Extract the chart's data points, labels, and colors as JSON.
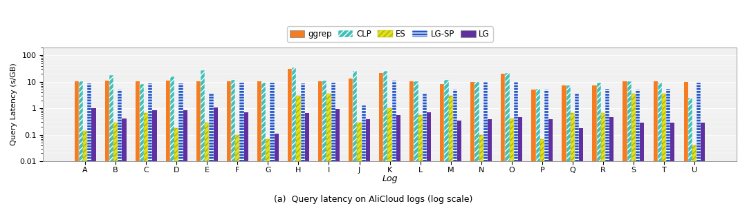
{
  "categories": [
    "A",
    "B",
    "C",
    "D",
    "E",
    "F",
    "G",
    "H",
    "I",
    "J",
    "K",
    "L",
    "M",
    "N",
    "O",
    "P",
    "Q",
    "R",
    "S",
    "T",
    "U"
  ],
  "ggrep": [
    10.5,
    11.0,
    10.2,
    10.8,
    10.5,
    10.5,
    10.5,
    30.0,
    10.5,
    13.0,
    22.0,
    10.5,
    8.0,
    10.0,
    20.0,
    5.0,
    7.5,
    7.5,
    10.5,
    10.5,
    10.0
  ],
  "clp": [
    10.5,
    17.5,
    8.0,
    15.5,
    27.0,
    11.5,
    9.5,
    35.0,
    11.0,
    25.0,
    25.0,
    10.5,
    11.5,
    10.0,
    22.0,
    5.5,
    7.5,
    9.5,
    10.5,
    9.5,
    2.5
  ],
  "es": [
    0.14,
    0.28,
    0.65,
    0.18,
    0.28,
    0.1,
    0.07,
    3.0,
    3.5,
    0.28,
    1.0,
    0.55,
    3.0,
    0.1,
    0.4,
    0.07,
    0.65,
    0.65,
    3.5,
    3.5,
    0.04
  ],
  "lgsp": [
    8.5,
    5.0,
    8.8,
    8.8,
    3.5,
    9.0,
    9.0,
    8.5,
    9.0,
    1.3,
    10.8,
    3.5,
    5.0,
    10.0,
    10.0,
    5.0,
    3.5,
    5.5,
    5.0,
    5.5,
    9.5
  ],
  "lg": [
    1.0,
    0.42,
    0.82,
    0.82,
    1.05,
    0.72,
    0.11,
    0.65,
    0.95,
    0.38,
    0.55,
    0.72,
    0.35,
    0.38,
    0.45,
    0.38,
    0.18,
    0.45,
    0.28,
    0.28,
    0.28
  ],
  "ggrep_color": "#f57c20",
  "clp_color": "#40c0b8",
  "es_color": "#e0e020",
  "lgsp_color": "#2255c8",
  "lg_color": "#6030a0",
  "ylabel": "Query Latency (s/GB)",
  "xlabel": "Log",
  "title": "(a)  Query latency on AliCloud logs (log scale)",
  "ylim_min": 0.01,
  "ylim_max": 200,
  "figsize": [
    10.8,
    2.99
  ],
  "dpi": 100
}
